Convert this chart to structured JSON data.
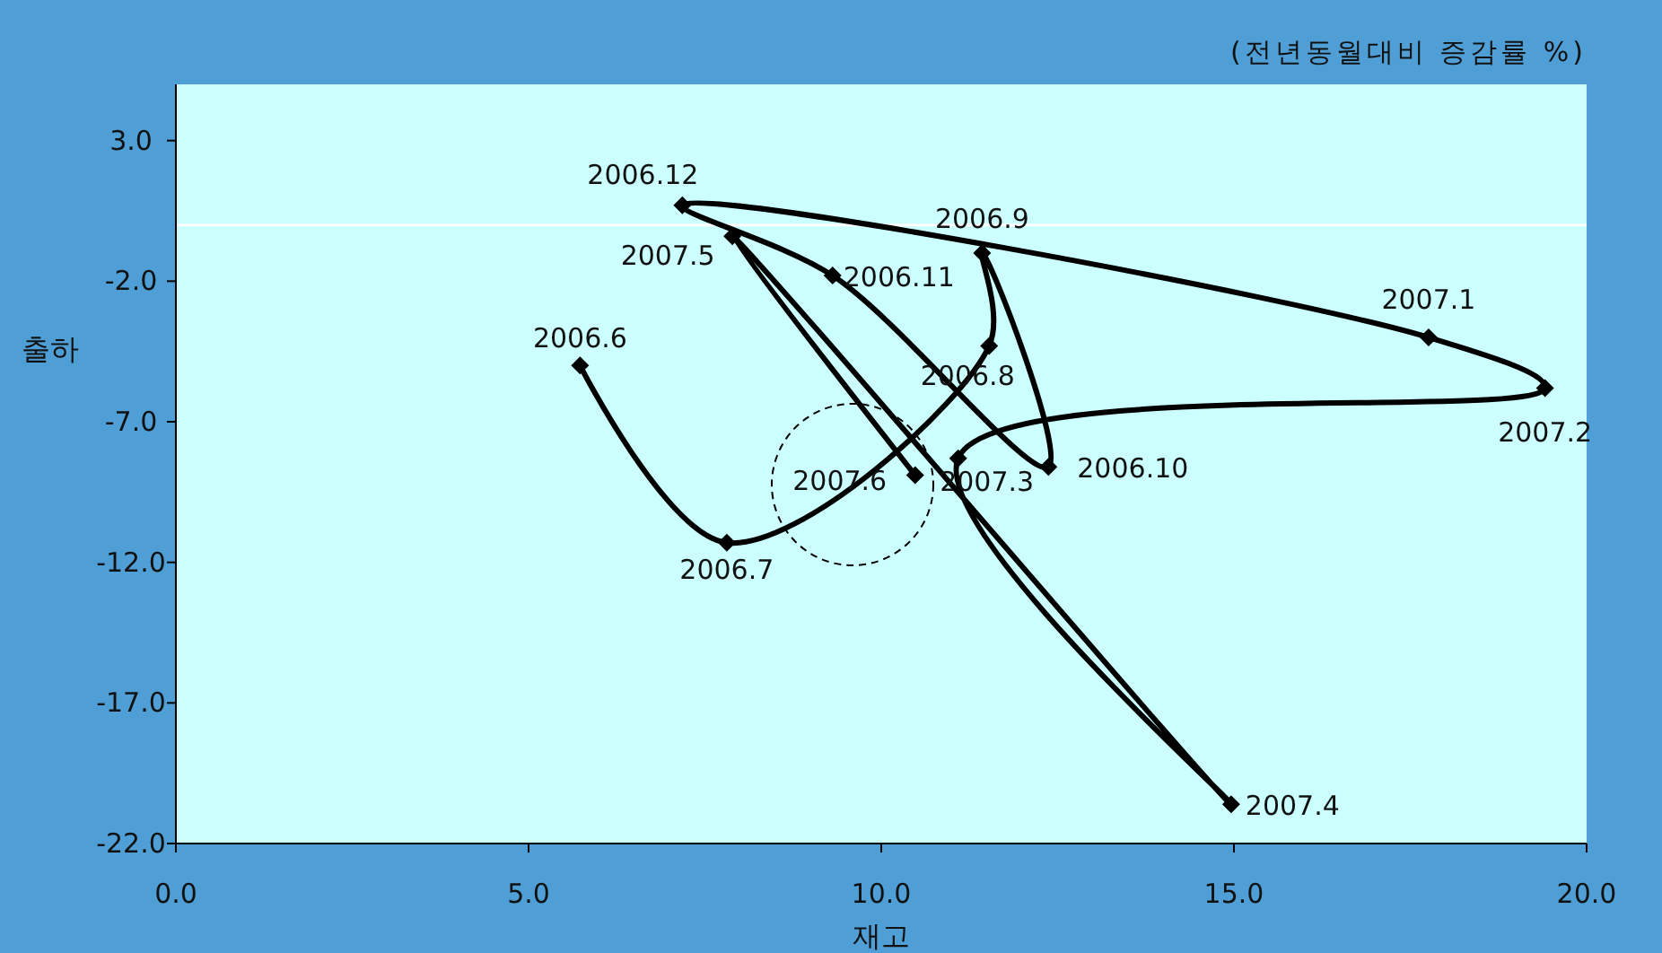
{
  "chart_data": {
    "type": "line",
    "xlabel": "재고",
    "ylabel": "출하",
    "marker": "diamond",
    "line_style": "solid",
    "grid": false,
    "xlim": [
      0,
      20
    ],
    "ylim": [
      -22,
      5
    ],
    "xticks": [
      {
        "value": 0,
        "label": "0.0"
      },
      {
        "value": 5,
        "label": "5.0"
      },
      {
        "value": 10,
        "label": "10.0"
      },
      {
        "value": 15,
        "label": "15.0"
      },
      {
        "value": 20,
        "label": "20.0"
      }
    ],
    "yticks": [
      {
        "value": 3,
        "label": "3.0"
      },
      {
        "value": -2,
        "label": "-2.0"
      },
      {
        "value": -7,
        "label": "-7.0"
      },
      {
        "value": -12,
        "label": "-12.0"
      },
      {
        "value": -17,
        "label": "-17.0"
      },
      {
        "value": -22,
        "label": "-22.0"
      }
    ],
    "series": [
      {
        "color": "#000000",
        "x": [
          5.73,
          7.81,
          11.53,
          11.43,
          12.37,
          9.31,
          7.18,
          17.76,
          19.41,
          11.09,
          14.96,
          7.89,
          10.48
        ],
        "values": [
          -5.0,
          -11.3,
          -4.3,
          -1.0,
          -8.6,
          -1.8,
          0.7,
          -4.0,
          -5.8,
          -8.3,
          -20.6,
          -0.4,
          -8.9
        ]
      }
    ],
    "ref_lines": [
      {
        "axis": "y",
        "value": 0,
        "color": "#ffffff"
      }
    ],
    "annotations": [
      "(전년동월대비 증감률 %)",
      {
        "text": "2006.6",
        "x": 5.73,
        "y": -5.0
      },
      {
        "text": "2006.7",
        "x": 7.81,
        "y": -11.3
      },
      {
        "text": "2006.8",
        "x": 11.53,
        "y": -4.3
      },
      {
        "text": "2006.9",
        "x": 11.43,
        "y": -1.0
      },
      {
        "text": "2006.10",
        "x": 12.37,
        "y": -8.6
      },
      {
        "text": "2006.11",
        "x": 9.31,
        "y": -1.8
      },
      {
        "text": "2006.12",
        "x": 7.18,
        "y": 0.7
      },
      {
        "text": "2007.1",
        "x": 17.76,
        "y": -4.0
      },
      {
        "text": "2007.2",
        "x": 19.41,
        "y": -5.8
      },
      {
        "text": "2007.3",
        "x": 11.09,
        "y": -8.3
      },
      {
        "text": "2007.4",
        "x": 14.96,
        "y": -20.6
      },
      {
        "text": "2007.5",
        "x": 7.89,
        "y": -0.4
      },
      {
        "text": "2007.6",
        "x": 10.48,
        "y": -8.9
      }
    ]
  }
}
